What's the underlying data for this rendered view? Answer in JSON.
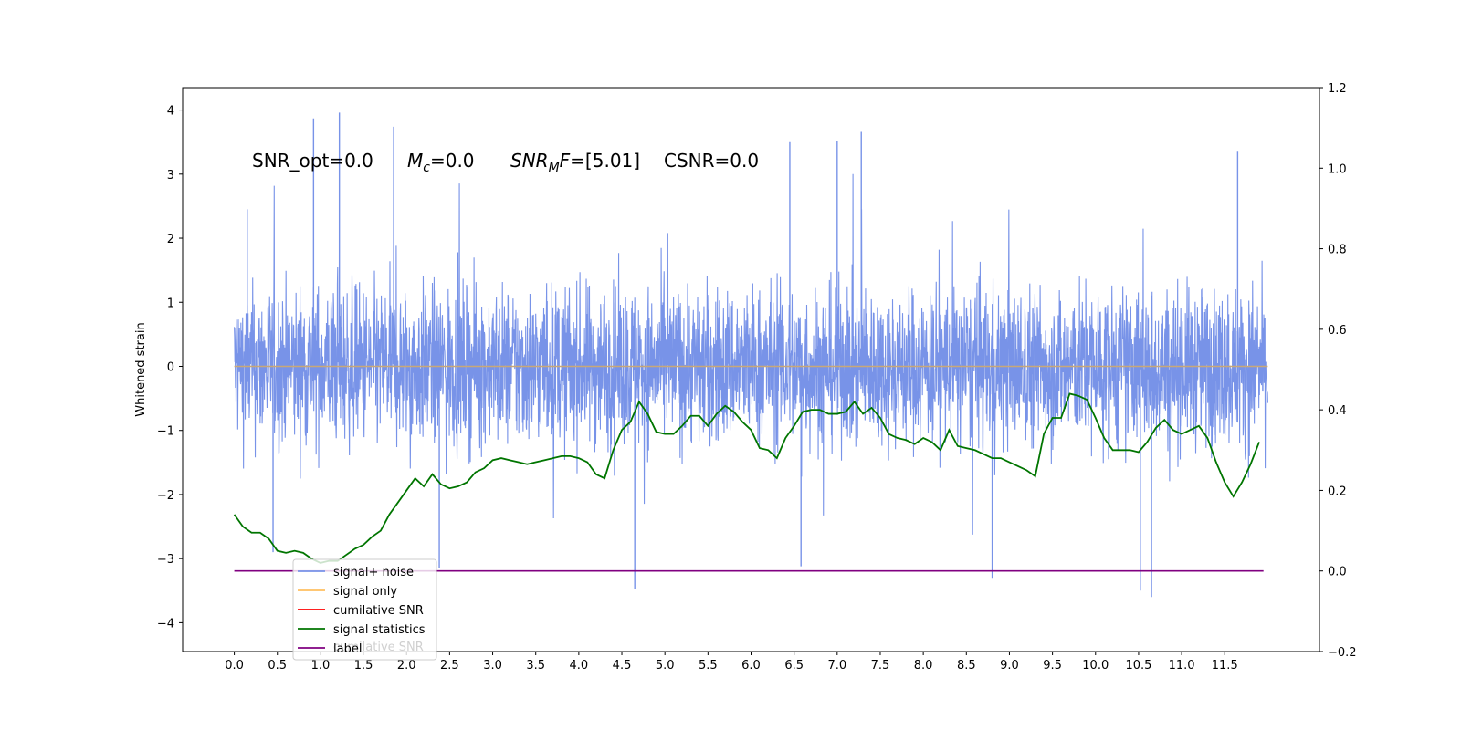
{
  "chart_data": {
    "type": "line",
    "annotation": {
      "snr_opt": "SNR_opt=0.0",
      "mc_symbol": "M",
      "mc_sub": "c",
      "mc_value": "=0.0",
      "snrmf_symbol": "SNR",
      "snrmf_sub": "M",
      "snrmf_f": "F",
      "snrmf_value": "=[5.01]",
      "csnr": "CSNR=0.0"
    },
    "ylabel": "Whitened strain",
    "xlim": [
      -0.6,
      12.6
    ],
    "ylim_left": [
      -4.45,
      4.35
    ],
    "ylim_right": [
      -0.2,
      1.2
    ],
    "x_ticks": [
      0.0,
      0.5,
      1.0,
      1.5,
      2.0,
      2.5,
      3.0,
      3.5,
      4.0,
      4.5,
      5.0,
      5.5,
      6.0,
      6.5,
      7.0,
      7.5,
      8.0,
      8.5,
      9.0,
      9.5,
      10.0,
      10.5,
      11.0,
      11.5
    ],
    "x_tick_labels": [
      "0.0",
      "0.5",
      "1.0",
      "1.5",
      "2.0",
      "2.5",
      "3.0",
      "3.5",
      "4.0",
      "4.5",
      "5.0",
      "5.5",
      "6.0",
      "6.5",
      "7.0",
      "7.5",
      "8.0",
      "8.5",
      "9.0",
      "9.5",
      "10.0",
      "10.5",
      "11.0",
      "11.5"
    ],
    "y_left_ticks": [
      -4,
      -3,
      -2,
      -1,
      0,
      1,
      2,
      3,
      4
    ],
    "y_left_tick_labels": [
      "−4",
      "−3",
      "−2",
      "−1",
      "0",
      "1",
      "2",
      "3",
      "4"
    ],
    "y_right_ticks": [
      -0.2,
      0.0,
      0.2,
      0.4,
      0.6,
      0.8,
      1.0,
      1.2
    ],
    "y_right_tick_labels": [
      "−0.2",
      "0.0",
      "0.2",
      "0.4",
      "0.6",
      "0.8",
      "1.0",
      "1.2"
    ],
    "grid": false,
    "legend_position": "bottom-left",
    "colors": {
      "signal_noise": "#7893e8",
      "signal_only": "#ffbf60",
      "cumulative_snr": "#ff0000",
      "signal_statistics": "#007500",
      "label": "#800080",
      "flat_line": "#c8a878"
    },
    "series": [
      {
        "name": "signal+ noise",
        "axis": "left",
        "kind": "noise",
        "x_range": [
          0.0,
          12.0
        ],
        "spread": [
          -3.0,
          3.0
        ],
        "spikes": [
          {
            "x": 0.92,
            "y": 3.87
          },
          {
            "x": 1.22,
            "y": 3.96
          },
          {
            "x": 1.85,
            "y": 3.74
          },
          {
            "x": 6.45,
            "y": 3.5
          },
          {
            "x": 7.0,
            "y": 3.52
          },
          {
            "x": 7.28,
            "y": 3.66
          },
          {
            "x": 11.65,
            "y": 3.35
          },
          {
            "x": 0.15,
            "y": 2.45
          },
          {
            "x": 4.65,
            "y": -3.48
          },
          {
            "x": 10.52,
            "y": -3.5
          },
          {
            "x": 10.65,
            "y": -3.6
          },
          {
            "x": 8.8,
            "y": -3.3
          },
          {
            "x": 6.58,
            "y": -3.12
          },
          {
            "x": 2.38,
            "y": -3.15
          },
          {
            "x": 0.45,
            "y": -2.9
          }
        ]
      },
      {
        "name": "signal only",
        "axis": "left",
        "x": [
          0.0,
          12.0
        ],
        "y": [
          0.0,
          0.0
        ]
      },
      {
        "name": "cumilative SNR",
        "axis": "right",
        "x": [],
        "y": []
      },
      {
        "name": "signal statistics",
        "axis": "right",
        "x": [
          0.0,
          0.1,
          0.2,
          0.3,
          0.4,
          0.5,
          0.6,
          0.7,
          0.8,
          0.9,
          1.0,
          1.1,
          1.2,
          1.3,
          1.4,
          1.5,
          1.6,
          1.7,
          1.8,
          1.9,
          2.0,
          2.1,
          2.2,
          2.3,
          2.4,
          2.5,
          2.6,
          2.7,
          2.8,
          2.9,
          3.0,
          3.1,
          3.2,
          3.3,
          3.4,
          3.5,
          3.6,
          3.7,
          3.8,
          3.9,
          4.0,
          4.1,
          4.2,
          4.3,
          4.4,
          4.5,
          4.6,
          4.7,
          4.8,
          4.9,
          5.0,
          5.1,
          5.2,
          5.3,
          5.4,
          5.5,
          5.6,
          5.7,
          5.8,
          5.9,
          6.0,
          6.1,
          6.2,
          6.3,
          6.4,
          6.5,
          6.6,
          6.7,
          6.8,
          6.9,
          7.0,
          7.1,
          7.2,
          7.3,
          7.4,
          7.5,
          7.6,
          7.7,
          7.8,
          7.9,
          8.0,
          8.1,
          8.2,
          8.3,
          8.4,
          8.5,
          8.6,
          8.7,
          8.8,
          8.9,
          9.0,
          9.1,
          9.2,
          9.3,
          9.4,
          9.5,
          9.6,
          9.7,
          9.8,
          9.9,
          10.0,
          10.1,
          10.2,
          10.3,
          10.4,
          10.5,
          10.6,
          10.7,
          10.8,
          10.9,
          11.0,
          11.1,
          11.2,
          11.3,
          11.4,
          11.5,
          11.6,
          11.7,
          11.8,
          11.9
        ],
        "y": [
          0.14,
          0.11,
          0.095,
          0.095,
          0.08,
          0.05,
          0.045,
          0.05,
          0.045,
          0.03,
          0.02,
          0.025,
          0.025,
          0.04,
          0.055,
          0.065,
          0.085,
          0.1,
          0.14,
          0.17,
          0.2,
          0.23,
          0.21,
          0.24,
          0.215,
          0.205,
          0.21,
          0.22,
          0.245,
          0.255,
          0.275,
          0.28,
          0.275,
          0.27,
          0.265,
          0.27,
          0.275,
          0.28,
          0.285,
          0.285,
          0.28,
          0.27,
          0.24,
          0.23,
          0.3,
          0.35,
          0.37,
          0.42,
          0.39,
          0.345,
          0.34,
          0.34,
          0.36,
          0.385,
          0.385,
          0.36,
          0.39,
          0.41,
          0.395,
          0.37,
          0.35,
          0.305,
          0.3,
          0.28,
          0.33,
          0.36,
          0.395,
          0.4,
          0.4,
          0.39,
          0.39,
          0.395,
          0.42,
          0.39,
          0.405,
          0.38,
          0.34,
          0.33,
          0.325,
          0.315,
          0.33,
          0.32,
          0.3,
          0.35,
          0.31,
          0.305,
          0.3,
          0.29,
          0.28,
          0.28,
          0.27,
          0.26,
          0.25,
          0.235,
          0.34,
          0.38,
          0.38,
          0.44,
          0.435,
          0.425,
          0.38,
          0.33,
          0.3,
          0.3,
          0.3,
          0.295,
          0.32,
          0.355,
          0.375,
          0.35,
          0.34,
          0.35,
          0.36,
          0.33,
          0.27,
          0.22,
          0.185,
          0.22,
          0.265,
          0.32
        ]
      },
      {
        "name": "label",
        "axis": "right",
        "x": [
          0.0,
          11.95
        ],
        "y": [
          0.0,
          0.0
        ]
      }
    ],
    "legend_entries": [
      {
        "label": "signal+ noise",
        "color_key": "signal_noise"
      },
      {
        "label": "signal only",
        "color_key": "signal_only"
      },
      {
        "label": "cumilative SNR",
        "color_key": "cumulative_snr"
      },
      {
        "label": "signal statistics",
        "color_key": "signal_statistics"
      },
      {
        "label": "label",
        "color_key": "label"
      }
    ],
    "legend_ghost_text": "cumilative SNR"
  }
}
